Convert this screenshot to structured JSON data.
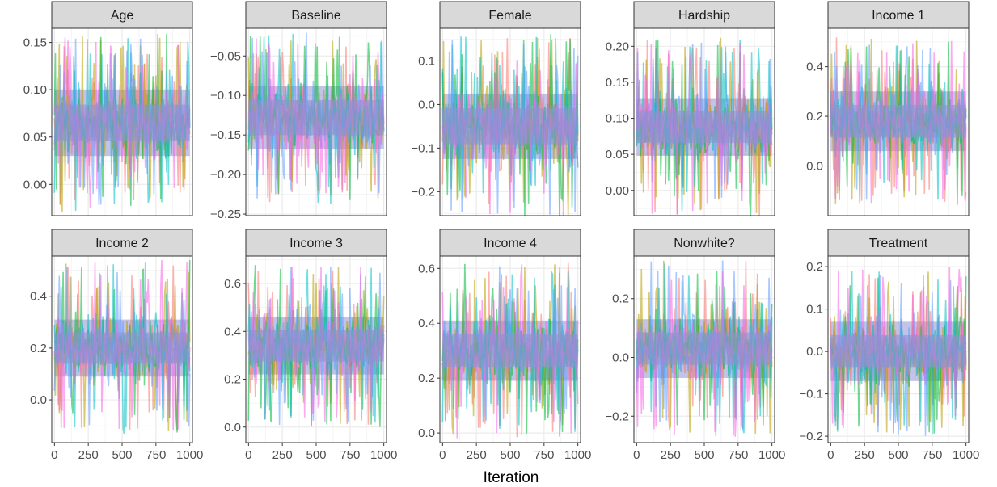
{
  "chart_data": {
    "type": "line",
    "xlabel": "Iteration",
    "ylabel": "",
    "legend": "none",
    "grid": true,
    "series_colors": [
      "#F8766D",
      "#B79F00",
      "#00BA38",
      "#00BFC4",
      "#619CFF",
      "#F564E3"
    ],
    "x_range": [
      0,
      1000
    ],
    "x_ticks": [
      0,
      250,
      500,
      750,
      1000
    ],
    "x_tick_labels": [
      "0",
      "250",
      "500",
      "750",
      "1000"
    ],
    "panels": [
      {
        "title": "Age",
        "ylim": [
          -0.033,
          0.165
        ],
        "y_ticks": [
          0.0,
          0.05,
          0.1,
          0.15
        ],
        "y_tick_labels": [
          "0.00",
          "0.05",
          "0.10",
          "0.15"
        ],
        "center": 0.065,
        "band": 0.035,
        "spike": 0.095
      },
      {
        "title": "Baseline",
        "ylim": [
          -0.252,
          -0.015
        ],
        "y_ticks": [
          -0.25,
          -0.2,
          -0.15,
          -0.1,
          -0.05
        ],
        "y_tick_labels": [
          "−0.25",
          "−0.20",
          "−0.15",
          "−0.10",
          "−0.05"
        ],
        "center": -0.128,
        "band": 0.04,
        "spike": 0.11
      },
      {
        "title": "Female",
        "ylim": [
          -0.255,
          0.175
        ],
        "y_ticks": [
          -0.2,
          -0.1,
          0.0,
          0.1
        ],
        "y_tick_labels": [
          "−0.2",
          "−0.1",
          "0.0",
          "0.1"
        ],
        "center": -0.05,
        "band": 0.075,
        "spike": 0.215
      },
      {
        "title": "Hardship",
        "ylim": [
          -0.035,
          0.225
        ],
        "y_ticks": [
          0.0,
          0.05,
          0.1,
          0.15,
          0.2
        ],
        "y_tick_labels": [
          "0.00",
          "0.05",
          "0.10",
          "0.15",
          "0.20"
        ],
        "center": 0.088,
        "band": 0.04,
        "spike": 0.125
      },
      {
        "title": "Income 1",
        "ylim": [
          -0.2,
          0.555
        ],
        "y_ticks": [
          0.0,
          0.2,
          0.4
        ],
        "y_tick_labels": [
          "0.0",
          "0.2",
          "0.4"
        ],
        "center": 0.18,
        "band": 0.12,
        "spike": 0.34
      },
      {
        "title": "Income 2",
        "ylim": [
          -0.165,
          0.555
        ],
        "y_ticks": [
          0.0,
          0.2,
          0.4
        ],
        "y_tick_labels": [
          "0.0",
          "0.2",
          "0.4"
        ],
        "center": 0.2,
        "band": 0.11,
        "spike": 0.34
      },
      {
        "title": "Income 3",
        "ylim": [
          -0.065,
          0.715
        ],
        "y_ticks": [
          0.0,
          0.2,
          0.4,
          0.6
        ],
        "y_tick_labels": [
          "0.0",
          "0.2",
          "0.4",
          "0.6"
        ],
        "center": 0.34,
        "band": 0.12,
        "spike": 0.34
      },
      {
        "title": "Income 4",
        "ylim": [
          -0.035,
          0.645
        ],
        "y_ticks": [
          0.0,
          0.2,
          0.4,
          0.6
        ],
        "y_tick_labels": [
          "0.0",
          "0.2",
          "0.4",
          "0.6"
        ],
        "center": 0.3,
        "band": 0.11,
        "spike": 0.32
      },
      {
        "title": "Nonwhite?",
        "ylim": [
          -0.29,
          0.345
        ],
        "y_ticks": [
          -0.2,
          0.0,
          0.2
        ],
        "y_tick_labels": [
          "−0.2",
          "0.0",
          "0.2"
        ],
        "center": 0.03,
        "band": 0.1,
        "spike": 0.3
      },
      {
        "title": "Treatment",
        "ylim": [
          -0.215,
          0.225
        ],
        "y_ticks": [
          -0.2,
          -0.1,
          0.0,
          0.1,
          0.2
        ],
        "y_tick_labels": [
          "−0.2",
          "−0.1",
          "0.0",
          "0.1",
          "0.2"
        ],
        "center": 0.0,
        "band": 0.07,
        "spike": 0.2
      }
    ]
  }
}
